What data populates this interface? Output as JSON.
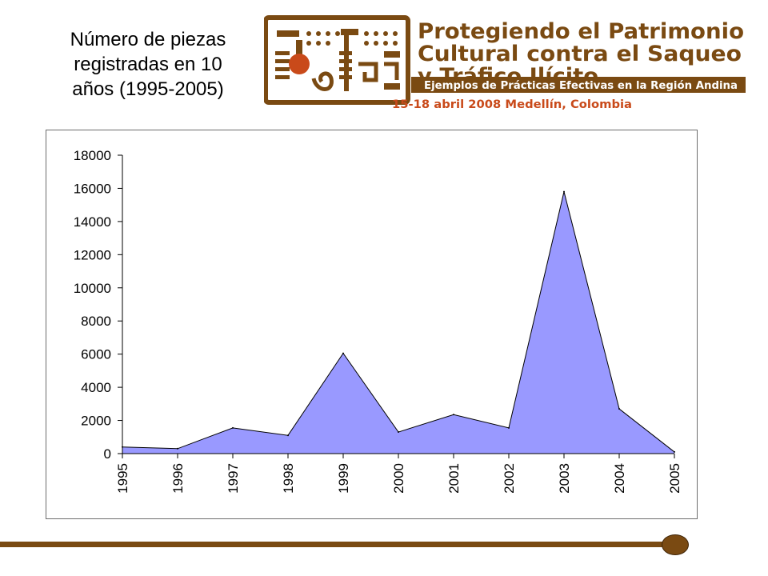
{
  "slide": {
    "title": "Número de piezas\nregistradas en 10\naños (1995-2005)"
  },
  "logo": {
    "line1": "Protegiendo el Patrimonio",
    "line2": "Cultural contra el Saqueo",
    "line3": "y Tráfico Ilícito",
    "banner": "Ejemplos de Prácticas Efectivas en la Región Andina",
    "date": "15-18 abril 2008 Medellín, Colombia",
    "colors": {
      "brown": "#7a4a12",
      "orange": "#c94a1a",
      "white": "#ffffff"
    }
  },
  "chart_data": {
    "type": "area",
    "x": [
      "1995",
      "1996",
      "1997",
      "1998",
      "1999",
      "2000",
      "2001",
      "2002",
      "2003",
      "2004",
      "2005"
    ],
    "values": [
      400,
      300,
      1550,
      1100,
      6050,
      1300,
      2350,
      1550,
      15800,
      2700,
      100
    ],
    "ylim": [
      0,
      18000
    ],
    "yticks": [
      0,
      2000,
      4000,
      6000,
      8000,
      10000,
      12000,
      14000,
      16000,
      18000
    ],
    "title": "",
    "xlabel": "",
    "ylabel": "",
    "grid": false,
    "legend": false,
    "colors": {
      "fill": "#9999ff",
      "stroke": "#000000"
    }
  },
  "footer": {
    "colors": {
      "line": "#7a4a12"
    }
  }
}
